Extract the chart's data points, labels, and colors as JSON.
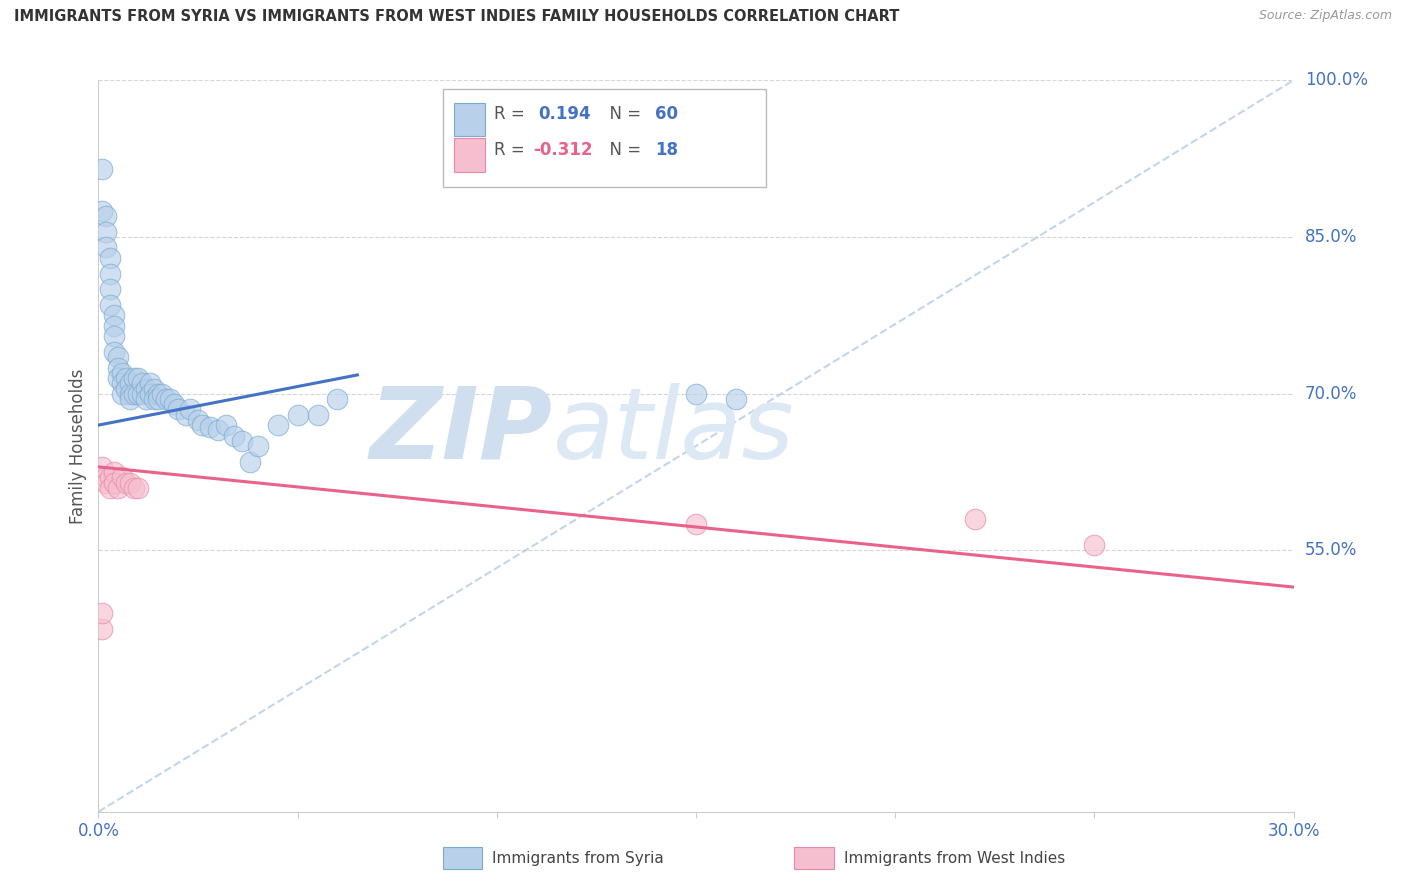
{
  "title": "IMMIGRANTS FROM SYRIA VS IMMIGRANTS FROM WEST INDIES FAMILY HOUSEHOLDS CORRELATION CHART",
  "source": "Source: ZipAtlas.com",
  "ylabel": "Family Households",
  "xlim": [
    0.0,
    0.3
  ],
  "ylim": [
    0.3,
    1.0
  ],
  "grid_color": "#cccccc",
  "background_color": "#ffffff",
  "syria_color": "#b8d0ea",
  "syria_edge_color": "#7aaad0",
  "west_indies_color": "#f5bfcf",
  "west_indies_edge_color": "#e888a8",
  "syria_R": 0.194,
  "syria_N": 60,
  "west_indies_R": -0.312,
  "west_indies_N": 18,
  "blue_color": "#4472c4",
  "pink_color": "#e8628a",
  "watermark_zip": "ZIP",
  "watermark_atlas": "atlas",
  "watermark_color": "#d0dff0",
  "syria_points_x": [
    0.001,
    0.001,
    0.002,
    0.002,
    0.002,
    0.003,
    0.003,
    0.003,
    0.003,
    0.004,
    0.004,
    0.004,
    0.004,
    0.005,
    0.005,
    0.005,
    0.006,
    0.006,
    0.006,
    0.007,
    0.007,
    0.008,
    0.008,
    0.008,
    0.009,
    0.009,
    0.01,
    0.01,
    0.011,
    0.011,
    0.012,
    0.012,
    0.013,
    0.013,
    0.014,
    0.014,
    0.015,
    0.015,
    0.016,
    0.017,
    0.018,
    0.019,
    0.02,
    0.022,
    0.023,
    0.025,
    0.026,
    0.028,
    0.03,
    0.032,
    0.034,
    0.036,
    0.038,
    0.04,
    0.045,
    0.05,
    0.055,
    0.06,
    0.15,
    0.16
  ],
  "syria_points_y": [
    0.915,
    0.875,
    0.87,
    0.855,
    0.84,
    0.83,
    0.815,
    0.8,
    0.785,
    0.775,
    0.765,
    0.755,
    0.74,
    0.735,
    0.725,
    0.715,
    0.72,
    0.71,
    0.7,
    0.715,
    0.705,
    0.71,
    0.7,
    0.695,
    0.715,
    0.7,
    0.715,
    0.7,
    0.71,
    0.7,
    0.705,
    0.695,
    0.71,
    0.7,
    0.705,
    0.695,
    0.7,
    0.695,
    0.7,
    0.695,
    0.695,
    0.69,
    0.685,
    0.68,
    0.685,
    0.675,
    0.67,
    0.668,
    0.665,
    0.67,
    0.66,
    0.655,
    0.635,
    0.65,
    0.67,
    0.68,
    0.68,
    0.695,
    0.7,
    0.695
  ],
  "west_indies_points_x": [
    0.001,
    0.001,
    0.002,
    0.002,
    0.003,
    0.003,
    0.004,
    0.004,
    0.005,
    0.006,
    0.007,
    0.008,
    0.009,
    0.01,
    0.15,
    0.22,
    0.25,
    0.001
  ],
  "west_indies_points_y": [
    0.63,
    0.475,
    0.62,
    0.615,
    0.62,
    0.61,
    0.625,
    0.615,
    0.61,
    0.62,
    0.615,
    0.615,
    0.61,
    0.61,
    0.575,
    0.58,
    0.555,
    0.49
  ],
  "syria_trend_x": [
    0.0,
    0.065
  ],
  "syria_trend_y": [
    0.67,
    0.718
  ],
  "west_indies_trend_x": [
    0.0,
    0.3
  ],
  "west_indies_trend_y": [
    0.63,
    0.515
  ],
  "diag_line_x": [
    0.0,
    0.3
  ],
  "diag_line_y": [
    0.3,
    1.0
  ],
  "ytick_vals": [
    0.55,
    0.7,
    0.85,
    1.0
  ],
  "ytick_labels": [
    "55.0%",
    "70.0%",
    "85.0%",
    "100.0%"
  ],
  "xtick_vals": [
    0.0,
    0.05,
    0.1,
    0.15,
    0.2,
    0.25,
    0.3
  ],
  "xtick_show": [
    "0.0%",
    "",
    "",
    "",
    "",
    "",
    "30.0%"
  ]
}
